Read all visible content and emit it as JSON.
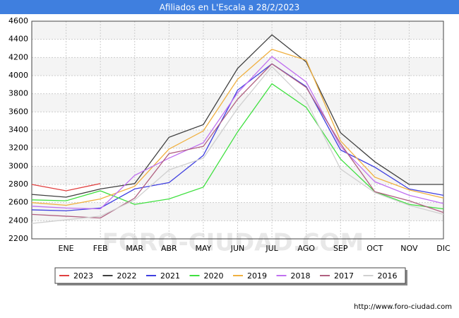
{
  "chart_data": {
    "type": "line",
    "title": "Afiliados en L'Escala a 28/2/2023",
    "categories": [
      null,
      "ENE",
      "FEB",
      "MAR",
      "ABR",
      "MAY",
      "JUN",
      "JUL",
      "AGO",
      "SEP",
      "OCT",
      "NOV",
      "DIC"
    ],
    "ylim": [
      2200,
      4600
    ],
    "yticks": [
      2200,
      2400,
      2600,
      2800,
      3000,
      3200,
      3400,
      3600,
      3800,
      4000,
      4200,
      4400,
      4600
    ],
    "grid": true,
    "series": [
      {
        "name": "2023",
        "color": "#e04040",
        "values": [
          2800,
          2730,
          2810,
          null,
          null,
          null,
          null,
          null,
          null,
          null,
          null,
          null,
          null
        ]
      },
      {
        "name": "2022",
        "color": "#404040",
        "values": [
          2690,
          2660,
          2750,
          2810,
          3320,
          3460,
          4080,
          4450,
          4150,
          3370,
          3050,
          2800,
          2800
        ]
      },
      {
        "name": "2021",
        "color": "#4040e0",
        "values": [
          2520,
          2510,
          2540,
          2750,
          2820,
          3120,
          3840,
          4130,
          3880,
          3180,
          2990,
          2750,
          2680
        ]
      },
      {
        "name": "2020",
        "color": "#40e040",
        "values": [
          2630,
          2620,
          2730,
          2580,
          2640,
          2770,
          3380,
          3910,
          3650,
          3080,
          2720,
          2580,
          2530
        ]
      },
      {
        "name": "2019",
        "color": "#f0b040",
        "values": [
          2600,
          2570,
          2640,
          2780,
          3190,
          3390,
          3960,
          4290,
          4170,
          3280,
          2880,
          2740,
          2650
        ]
      },
      {
        "name": "2018",
        "color": "#c070f0",
        "values": [
          2560,
          2540,
          2530,
          2900,
          3090,
          3260,
          3810,
          4210,
          3930,
          3220,
          2830,
          2680,
          2590
        ]
      },
      {
        "name": "2017",
        "color": "#b06080",
        "values": [
          2470,
          2450,
          2430,
          2650,
          3140,
          3220,
          3740,
          4130,
          3870,
          3250,
          2720,
          2620,
          2490
        ]
      },
      {
        "name": "2016",
        "color": "#d0d0d0",
        "values": [
          2370,
          2410,
          2450,
          2630,
          2960,
          3090,
          3640,
          4100,
          3720,
          2970,
          2710,
          2570,
          2470
        ]
      }
    ],
    "watermark": "FORO-CIUDAD.COM",
    "source": "http://www.foro-ciudad.com"
  }
}
